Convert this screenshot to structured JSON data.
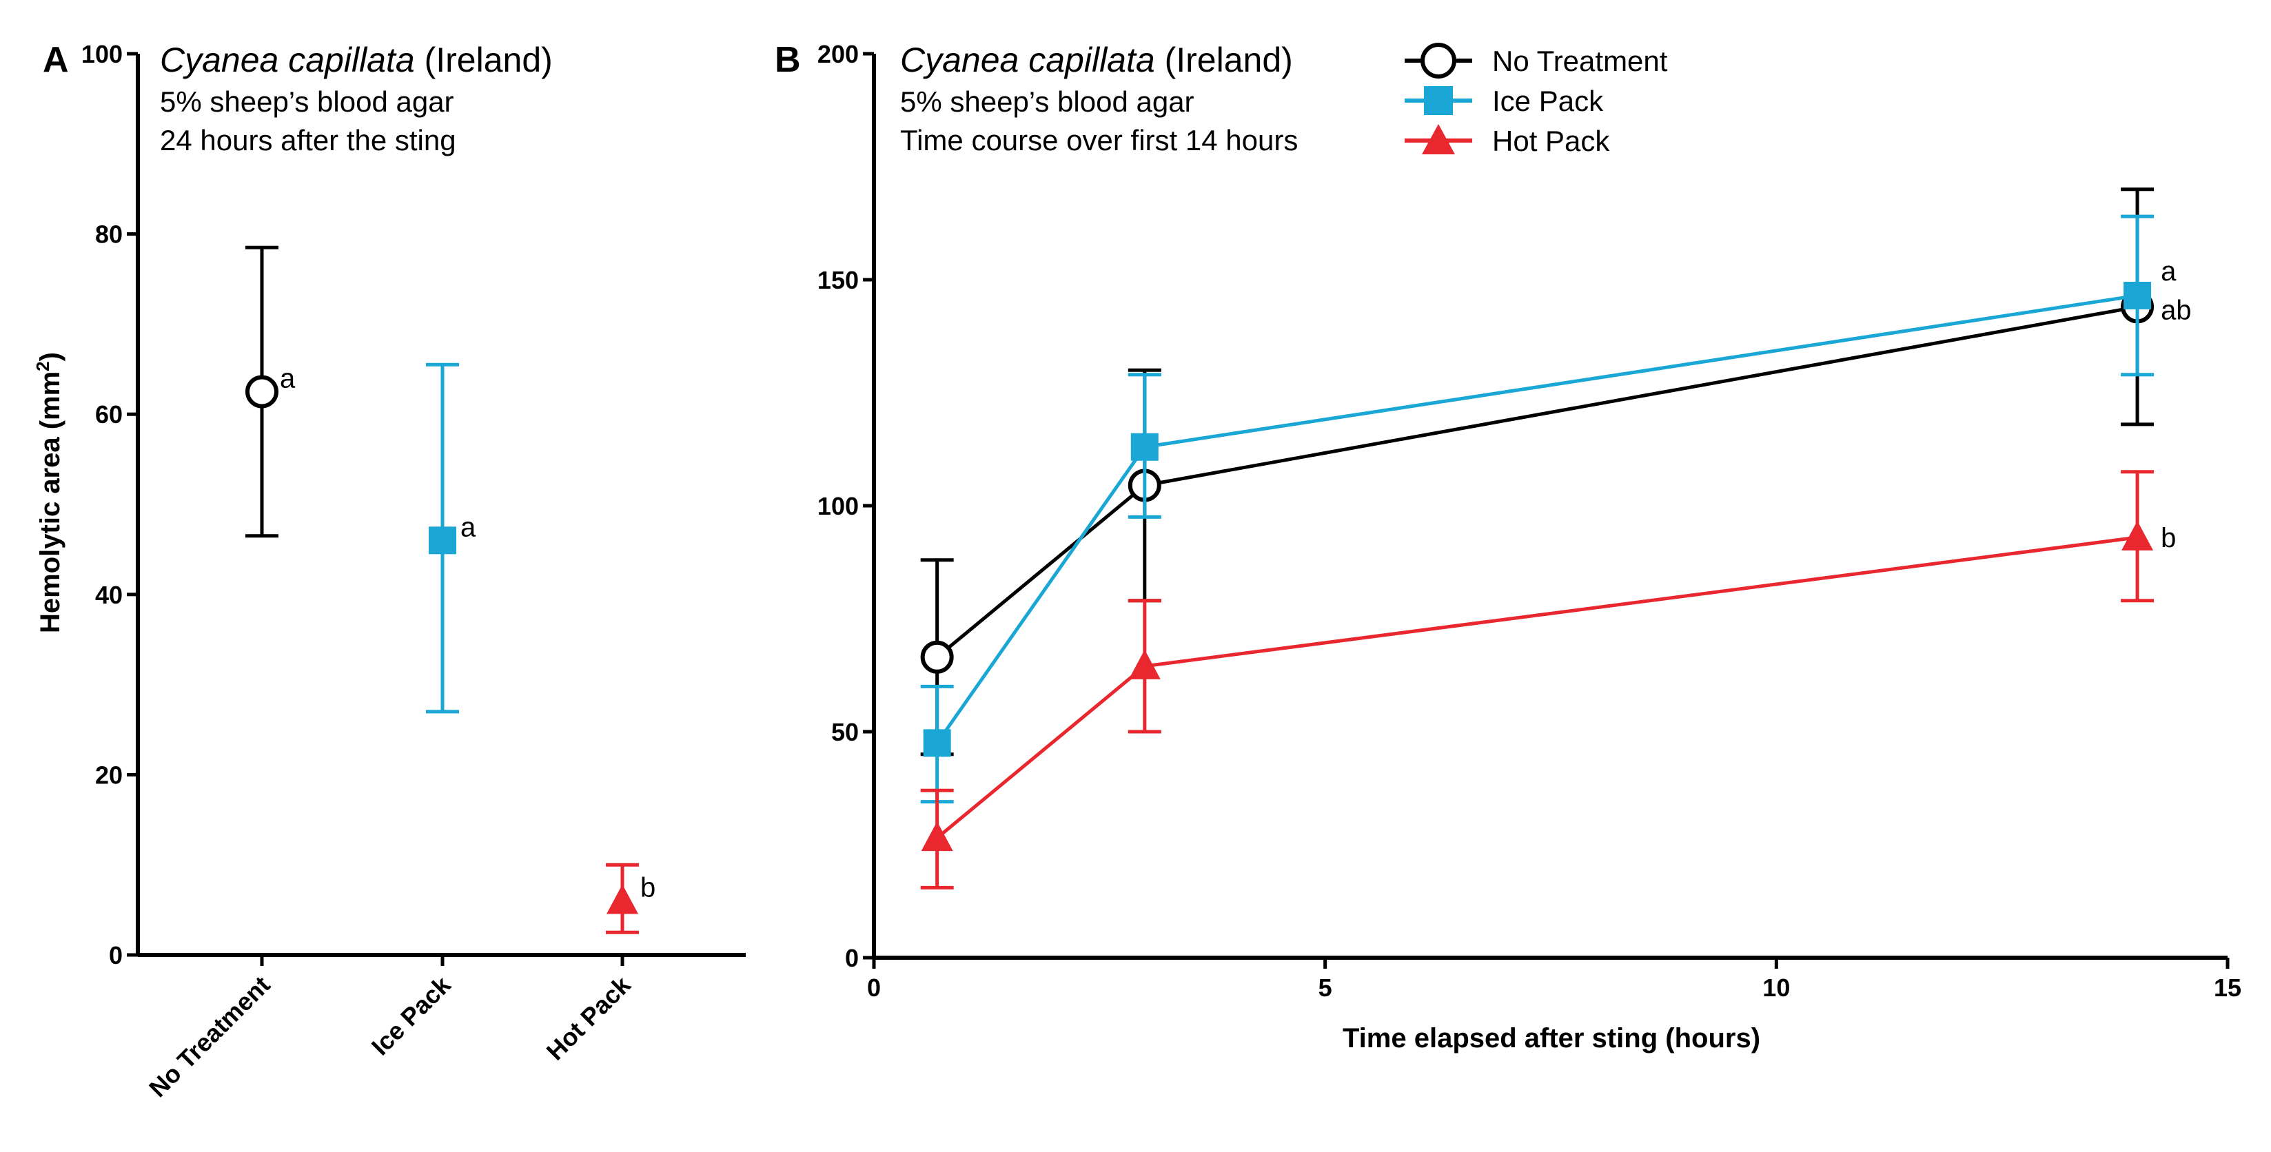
{
  "colors": {
    "no_treatment": "#000000",
    "ice_pack": "#1aa7d6",
    "hot_pack": "#e8282e",
    "axis": "#000000",
    "background": "#ffffff"
  },
  "chart_data": [
    {
      "id": "A",
      "type": "scatter",
      "panel_letter": "A",
      "title": {
        "species_italic": "Cyanea capillata",
        "location": "(Ireland)",
        "line2": "5% sheep’s blood agar",
        "line3": "24 hours after the sting"
      },
      "ylabel": "Hemolytic area (mm",
      "ylabel_sup": "2",
      "ylabel_close": ")",
      "ylim": [
        0,
        100
      ],
      "yticks": [
        0,
        20,
        40,
        60,
        80,
        100
      ],
      "categories": [
        "No Treatment",
        "Ice Pack",
        "Hot Pack"
      ],
      "series": [
        {
          "name": "No Treatment",
          "color_key": "no_treatment",
          "marker": "circle-open",
          "mean": 62.5,
          "err_low": 46.5,
          "err_high": 78.5,
          "sig": "a"
        },
        {
          "name": "Ice Pack",
          "color_key": "ice_pack",
          "marker": "square",
          "mean": 46,
          "err_low": 27,
          "err_high": 65.5,
          "sig": "a"
        },
        {
          "name": "Hot Pack",
          "color_key": "hot_pack",
          "marker": "triangle",
          "mean": 6,
          "err_low": 2.5,
          "err_high": 10,
          "sig": "b"
        }
      ]
    },
    {
      "id": "B",
      "type": "line",
      "panel_letter": "B",
      "title": {
        "species_italic": "Cyanea capillata",
        "location": "(Ireland)",
        "line2": "5% sheep’s blood agar",
        "line3": "Time course over first 14 hours"
      },
      "xlabel": "Time elapsed after sting (hours)",
      "xlim": [
        0,
        15
      ],
      "xticks": [
        0,
        5,
        10,
        15
      ],
      "ylim": [
        0,
        200
      ],
      "yticks": [
        0,
        50,
        100,
        150,
        200
      ],
      "legend": [
        "No Treatment",
        "Ice Pack",
        "Hot Pack"
      ],
      "series": [
        {
          "name": "No Treatment",
          "color_key": "no_treatment",
          "marker": "circle-open",
          "x": [
            0.7,
            3,
            14
          ],
          "y": [
            66.5,
            104.5,
            144
          ],
          "err_low": [
            45,
            79,
            118
          ],
          "err_high": [
            88,
            130,
            170
          ],
          "sig_last": "ab"
        },
        {
          "name": "Ice Pack",
          "color_key": "ice_pack",
          "marker": "square",
          "x": [
            0.7,
            3,
            14
          ],
          "y": [
            47.5,
            113,
            146.5
          ],
          "err_low": [
            34.5,
            97.5,
            129
          ],
          "err_high": [
            60,
            129,
            164
          ],
          "sig_last": "a"
        },
        {
          "name": "Hot Pack",
          "color_key": "hot_pack",
          "marker": "triangle",
          "x": [
            0.7,
            3,
            14
          ],
          "y": [
            26.5,
            64.5,
            93
          ],
          "err_low": [
            15.5,
            50,
            79
          ],
          "err_high": [
            37,
            79,
            107.5
          ],
          "sig_last": "b"
        }
      ]
    }
  ]
}
